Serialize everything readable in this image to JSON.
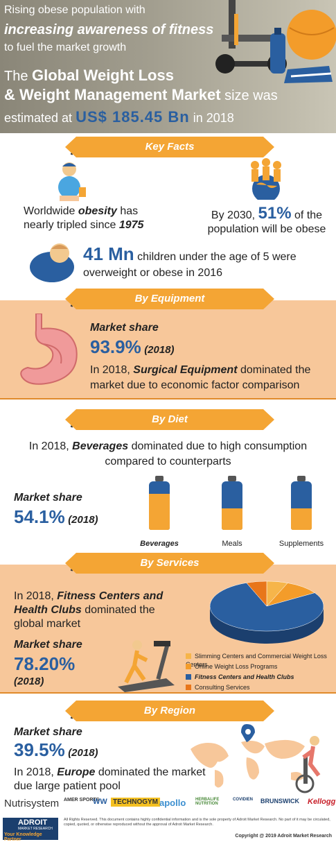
{
  "header": {
    "line1": "Rising obese population with",
    "line2": "increasing awareness of fitness",
    "line3": "to fuel the market growth",
    "title1_the": "The",
    "title1_bold": "Global Weight Loss",
    "title2_bold": "& Weight Management Market",
    "title2_rest": "size was",
    "title3_pre": "estimated at",
    "title3_value": "US$ 185.45 Bn",
    "title3_post": "in 2018"
  },
  "key_facts": {
    "heading": "Key Facts",
    "obesity_pre": "Worldwide",
    "obesity_word": "obesity",
    "obesity_post": "has",
    "obesity_line2": "nearly tripled since",
    "obesity_year": "1975",
    "pop_pre": "By 2030,",
    "pop_value": "51%",
    "pop_post": "of the",
    "pop_line2": "population will be obese",
    "children_value": "41 Mn",
    "children_post": "children under the age of 5 were",
    "children_line2": "overweight or obese in 2016"
  },
  "equipment": {
    "heading": "By Equipment",
    "share_label": "Market share",
    "share_value": "93.9%",
    "share_year": "(2018)",
    "desc1_pre": "In 2018,",
    "desc1_bold": "Surgical Equipment",
    "desc1_post": "dominated the",
    "desc2": "market due to economic factor comparison"
  },
  "diet": {
    "heading": "By Diet",
    "desc1_pre": "In 2018,",
    "desc1_bold": "Beverages",
    "desc1_post": "dominated due to high consumption",
    "desc2": "compared to counterparts",
    "share_label": "Market share",
    "share_value": "54.1%",
    "share_year": "(2018)",
    "bottles": [
      {
        "label": "Beverages",
        "fill": 0.75
      },
      {
        "label": "Meals",
        "fill": 0.45
      },
      {
        "label": "Supplements",
        "fill": 0.45
      }
    ]
  },
  "services": {
    "heading": "By Services",
    "desc1_pre": "In 2018,",
    "desc1_bold": "Fitness Centers and",
    "desc2_bold": "Health Clubs",
    "desc2_post": "dominated the",
    "desc3": "global market",
    "share_label": "Market share",
    "share_value": "78.20%",
    "share_year": "(2018)",
    "legend": [
      {
        "label": "Slimming Centers and Commercial Weight Loss Centers",
        "color": "#f6b54a"
      },
      {
        "label": "Online Weight Loss Programs",
        "color": "#f39c2a"
      },
      {
        "label": "Fitness Centers and Health Clubs",
        "color": "#2a5fa0"
      },
      {
        "label": "Consulting Services",
        "color": "#e8761a"
      }
    ]
  },
  "region": {
    "heading": "By Region",
    "share_label": "Market share",
    "share_value": "39.5%",
    "share_year": "(2018)",
    "desc1_pre": "In 2018,",
    "desc1_bold": "Europe",
    "desc1_post": "dominated the market",
    "desc2": "due large patient pool"
  },
  "logos": [
    "Nutrisystem",
    "AMER SPORTS",
    "WW",
    "TECHNOGYM",
    "apollo",
    "HERBALIFE NUTRITION",
    "COVIDIEN",
    "BRUNSWICK",
    "Kellogg's"
  ],
  "footer": {
    "brand": "ADROIT",
    "brand_sub": "MARKET RESEARCH",
    "tagline": "Your Knowledge Partner",
    "rights": "All Rights Reserved. This document contains highly confidential information and is the sole property of Adroit Market Research. No part of it may be circulated, copied, quoted, or otherwise reproduced without the approval of Adroit Market Research.",
    "copyright": "Copyright @ 2019 Adroit Market Research"
  },
  "colors": {
    "accent_orange": "#f4a534",
    "peach": "#f7c79a",
    "blue": "#2a5fa0"
  }
}
